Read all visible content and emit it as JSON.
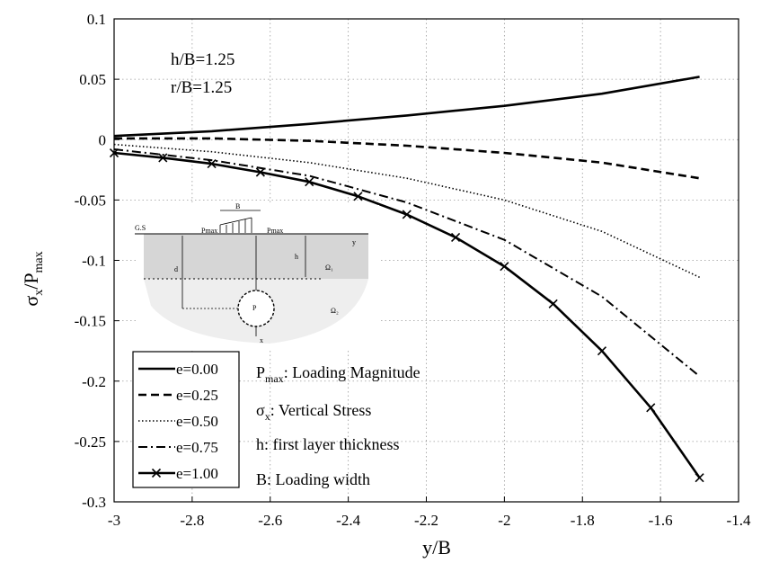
{
  "chart_data": {
    "type": "line",
    "xlabel": "y/B",
    "ylabel": "σx/Pmax",
    "xlim": [
      -3,
      -1.4
    ],
    "ylim": [
      -0.3,
      0.1
    ],
    "grid": true,
    "x_ticks": [
      "-3",
      "-2.8",
      "-2.6",
      "-2.4",
      "-2.2",
      "-2",
      "-1.8",
      "-1.6",
      "-1.4"
    ],
    "y_ticks": [
      "0.1",
      "0.05",
      "0",
      "-0.05",
      "-0.1",
      "-0.15",
      "-0.2",
      "-0.25",
      "-0.3"
    ],
    "annotations": [
      "h/B=1.25",
      "r/B=1.25"
    ],
    "legend_position": "bottom-left",
    "series": [
      {
        "name": "e=0.00",
        "style": "solid",
        "x": [
          -3,
          -2.75,
          -2.5,
          -2.25,
          -2,
          -1.75,
          -1.5
        ],
        "y": [
          0.003,
          0.007,
          0.013,
          0.02,
          0.028,
          0.038,
          0.052
        ]
      },
      {
        "name": "e=0.25",
        "style": "dashed",
        "x": [
          -3,
          -2.75,
          -2.5,
          -2.25,
          -2,
          -1.75,
          -1.5
        ],
        "y": [
          0.001,
          0.001,
          -0.001,
          -0.005,
          -0.011,
          -0.019,
          -0.032
        ]
      },
      {
        "name": "e=0.50",
        "style": "dotted",
        "x": [
          -3,
          -2.75,
          -2.5,
          -2.25,
          -2,
          -1.75,
          -1.5
        ],
        "y": [
          -0.004,
          -0.01,
          -0.019,
          -0.032,
          -0.05,
          -0.076,
          -0.114
        ]
      },
      {
        "name": "e=0.75",
        "style": "dashdot",
        "x": [
          -3,
          -2.75,
          -2.5,
          -2.25,
          -2,
          -1.75,
          -1.5
        ],
        "y": [
          -0.008,
          -0.017,
          -0.03,
          -0.052,
          -0.083,
          -0.13,
          -0.196
        ]
      },
      {
        "name": "e=1.00",
        "style": "solid-x",
        "x": [
          -3,
          -2.875,
          -2.75,
          -2.625,
          -2.5,
          -2.375,
          -2.25,
          -2.125,
          -2,
          -1.875,
          -1.75,
          -1.625,
          -1.5
        ],
        "y": [
          -0.011,
          -0.015,
          -0.02,
          -0.027,
          -0.035,
          -0.047,
          -0.062,
          -0.081,
          -0.105,
          -0.136,
          -0.175,
          -0.222,
          -0.28
        ]
      }
    ],
    "notes": [
      {
        "symbol": "P",
        "sub": "max",
        "text": ": Loading Magnitude"
      },
      {
        "symbol": "σ",
        "sub": "x",
        "text": ": Vertical Stress"
      },
      {
        "symbol": "",
        "sub": "",
        "text": "h: first layer thickness"
      },
      {
        "symbol": "",
        "sub": "",
        "text": "B: Loading width"
      }
    ],
    "inset_labels": {
      "gs": "G.S",
      "b": "B",
      "pmax_left": "Pmax",
      "pmax_right": "Pmax",
      "y": "y",
      "h": "h",
      "d": "d",
      "p": "P",
      "x": "x",
      "omega1": "Ω₁",
      "omega2": "Ω₂"
    }
  }
}
